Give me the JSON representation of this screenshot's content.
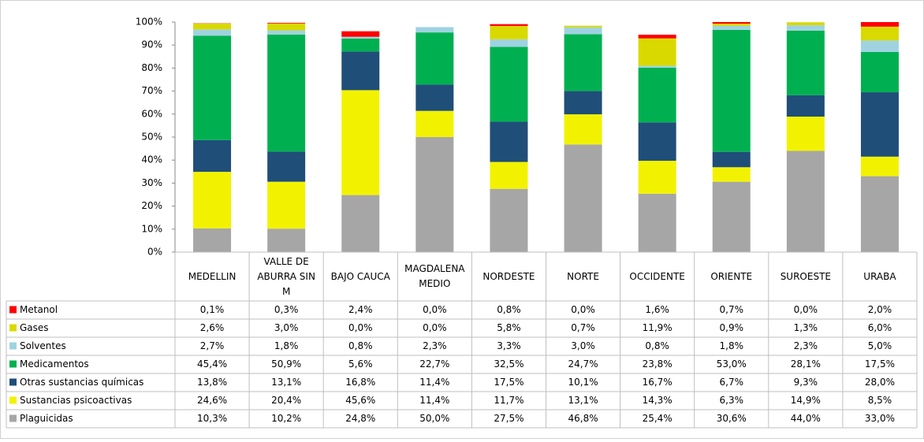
{
  "chart_data": {
    "type": "stacked_bar",
    "categories": [
      "MEDELLIN",
      "VALLE DE ABURRA SIN M",
      "BAJO CAUCA",
      "MAGDALENA MEDIO",
      "NORDESTE",
      "NORTE",
      "OCCIDENTE",
      "ORIENTE",
      "SUROESTE",
      "URABA"
    ],
    "ylim": [
      0,
      100
    ],
    "yticks": [
      {
        "value": 0,
        "label": "0%"
      },
      {
        "value": 10,
        "label": "10%"
      },
      {
        "value": 20,
        "label": "20%"
      },
      {
        "value": 30,
        "label": "30%"
      },
      {
        "value": 40,
        "label": "40%"
      },
      {
        "value": 50,
        "label": "50%"
      },
      {
        "value": 60,
        "label": "60%"
      },
      {
        "value": 70,
        "label": "70%"
      },
      {
        "value": 80,
        "label": "80%"
      },
      {
        "value": 90,
        "label": "90%"
      },
      {
        "value": 100,
        "label": "100%"
      }
    ],
    "series": [
      {
        "name": "Metanol",
        "color": "#ff0000",
        "values": [
          0.1,
          0.3,
          2.4,
          0.0,
          0.8,
          0.0,
          1.6,
          0.7,
          0.0,
          2.0
        ],
        "value_labels": [
          "0,1%",
          "0,3%",
          "2,4%",
          "0,0%",
          "0,8%",
          "0,0%",
          "1,6%",
          "0,7%",
          "0,0%",
          "2,0%"
        ]
      },
      {
        "name": "Gases",
        "color": "#d9d900",
        "values": [
          2.6,
          3.0,
          0.0,
          0.0,
          5.8,
          0.7,
          11.9,
          0.9,
          1.3,
          6.0
        ],
        "value_labels": [
          "2,6%",
          "3,0%",
          "0,0%",
          "0,0%",
          "5,8%",
          "0,7%",
          "11,9%",
          "0,9%",
          "1,3%",
          "6,0%"
        ]
      },
      {
        "name": "Solventes",
        "color": "#9fd3e0",
        "values": [
          2.7,
          1.8,
          0.8,
          2.3,
          3.3,
          3.0,
          0.8,
          1.8,
          2.3,
          5.0
        ],
        "value_labels": [
          "2,7%",
          "1,8%",
          "0,8%",
          "2,3%",
          "3,3%",
          "3,0%",
          "0,8%",
          "1,8%",
          "2,3%",
          "5,0%"
        ]
      },
      {
        "name": "Medicamentos",
        "color": "#00b050",
        "values": [
          45.4,
          50.9,
          5.6,
          22.7,
          32.5,
          24.7,
          23.8,
          53.0,
          28.1,
          17.5
        ],
        "value_labels": [
          "45,4%",
          "50,9%",
          "5,6%",
          "22,7%",
          "32,5%",
          "24,7%",
          "23,8%",
          "53,0%",
          "28,1%",
          "17,5%"
        ]
      },
      {
        "name": "Otras sustancias químicas",
        "color": "#1f4e79",
        "values": [
          13.8,
          13.1,
          16.8,
          11.4,
          17.5,
          10.1,
          16.7,
          6.7,
          9.3,
          28.0
        ],
        "value_labels": [
          "13,8%",
          "13,1%",
          "16,8%",
          "11,4%",
          "17,5%",
          "10,1%",
          "16,7%",
          "6,7%",
          "9,3%",
          "28,0%"
        ]
      },
      {
        "name": "Sustancias psicoactivas",
        "color": "#f2f200",
        "values": [
          24.6,
          20.4,
          45.6,
          11.4,
          11.7,
          13.1,
          14.3,
          6.3,
          14.9,
          8.5
        ],
        "value_labels": [
          "24,6%",
          "20,4%",
          "45,6%",
          "11,4%",
          "11,7%",
          "13,1%",
          "14,3%",
          "6,3%",
          "14,9%",
          "8,5%"
        ]
      },
      {
        "name": "Plaguicidas",
        "color": "#a6a6a6",
        "values": [
          10.3,
          10.2,
          24.8,
          50.0,
          27.5,
          46.8,
          25.4,
          30.6,
          44.0,
          33.0
        ],
        "value_labels": [
          "10,3%",
          "10,2%",
          "24,8%",
          "50,0%",
          "27,5%",
          "46,8%",
          "25,4%",
          "30,6%",
          "44,0%",
          "33,0%"
        ]
      }
    ]
  }
}
